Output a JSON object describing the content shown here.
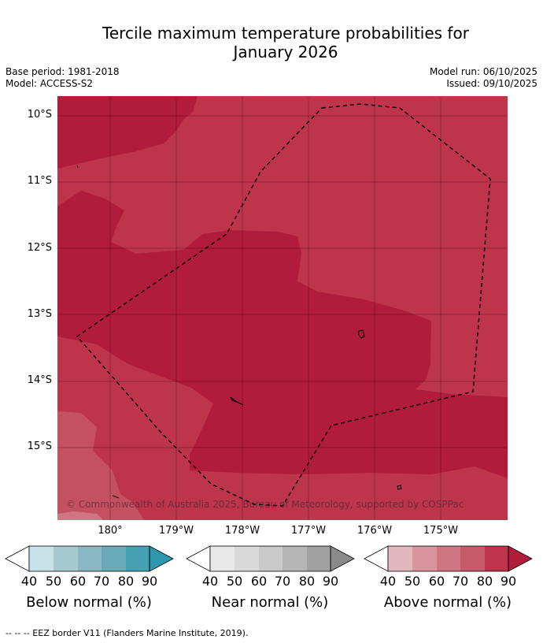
{
  "title_line1": "Tercile maximum temperature probabilities for",
  "title_line2": "January 2026",
  "meta": {
    "base_period": "Base period: 1981-2018",
    "model": "Model: ACCESS-S2",
    "model_run": "Model run: 06/10/2025",
    "issued": "Issued: 09/10/2025"
  },
  "map": {
    "lat_labels": [
      "10°S",
      "11°S",
      "12°S",
      "13°S",
      "14°S",
      "15°S"
    ],
    "lon_labels": [
      "180°",
      "179°W",
      "178°W",
      "177°W",
      "176°W",
      "175°W"
    ],
    "copyright": "© Commonwealth of Australia 2025, Bureau of Meteorology, supported by COSPPac",
    "colors": {
      "above_80": "#bd344b",
      "above_90": "#b01c39",
      "above_70": "#c55060"
    }
  },
  "colorbars": [
    {
      "label": "Below normal (%)",
      "ticks": [
        "40",
        "50",
        "60",
        "70",
        "80",
        "90"
      ],
      "colors": [
        "#ffffff",
        "#c8e2ea",
        "#a5c9d1",
        "#89b8c4",
        "#6aa9b8",
        "#45a0b3",
        "#2e96ad"
      ]
    },
    {
      "label": "Near normal (%)",
      "ticks": [
        "40",
        "50",
        "60",
        "70",
        "80",
        "90"
      ],
      "colors": [
        "#ffffff",
        "#e8e8e8",
        "#d9d9d9",
        "#c9c9c9",
        "#b6b6b6",
        "#a1a1a1",
        "#8a8a8a"
      ]
    },
    {
      "label": "Above normal (%)",
      "ticks": [
        "40",
        "50",
        "60",
        "70",
        "80",
        "90"
      ],
      "colors": [
        "#ffffff",
        "#e3b8bd",
        "#d9949d",
        "#cf7682",
        "#c55a69",
        "#bd344b",
        "#b01c39"
      ]
    }
  ],
  "footnote": "--  --  -- EEZ border V11 (Flanders Marine Institute, 2019)."
}
